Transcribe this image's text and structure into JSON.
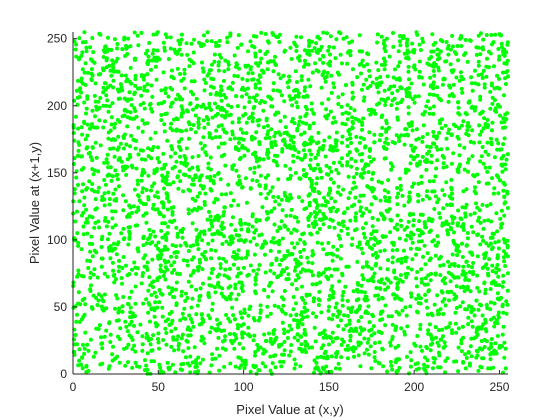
{
  "chart_data": {
    "type": "scatter",
    "xlabel": "Pixel Value at (x,y)",
    "ylabel": "Pixel Value at (x+1,y)",
    "xlim": [
      0,
      255
    ],
    "ylim": [
      0,
      255
    ],
    "xticks": [
      0,
      50,
      100,
      150,
      200,
      250
    ],
    "yticks": [
      0,
      50,
      100,
      150,
      200,
      250
    ],
    "grid": false,
    "marker_color": "#00ff00",
    "approx_point_count": 4000,
    "distribution": "uniform over [0,255] x [0,255]"
  }
}
